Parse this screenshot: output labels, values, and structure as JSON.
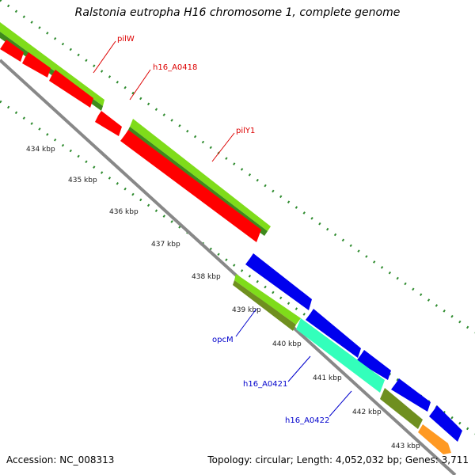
{
  "title": "Ralstonia eutropha H16 chromosome 1, complete genome",
  "footer": {
    "accession": "Accession: NC_008313",
    "topology": "Topology: circular; Length: 4,052,032 bp; Genes: 3,711"
  },
  "colors": {
    "forward_lime": "#7fdc1a",
    "forward_dark": "#3e8a1c",
    "reverse_red": "#ff0000",
    "blue_cds": "#0000ee",
    "cyan_cds": "#33ffbb",
    "olive_cds": "#6f8f1f",
    "orange_cds": "#ff9922",
    "backbone": "#888888",
    "tick": "#2e8b2e",
    "label_red": "#dd0000",
    "label_blue": "#0000cc"
  },
  "ticks": [
    "434 kbp",
    "435 kbp",
    "436 kbp",
    "437 kbp",
    "438 kbp",
    "439 kbp",
    "440 kbp",
    "441 kbp",
    "442 kbp",
    "443 kbp"
  ],
  "gene_labels": {
    "pilW": "pilW",
    "h16_A0418": "h16_A0418",
    "pilY1": "pilY1",
    "opcM": "opcM",
    "h16_A0421": "h16_A0421",
    "h16_A0422": "h16_A0422"
  }
}
